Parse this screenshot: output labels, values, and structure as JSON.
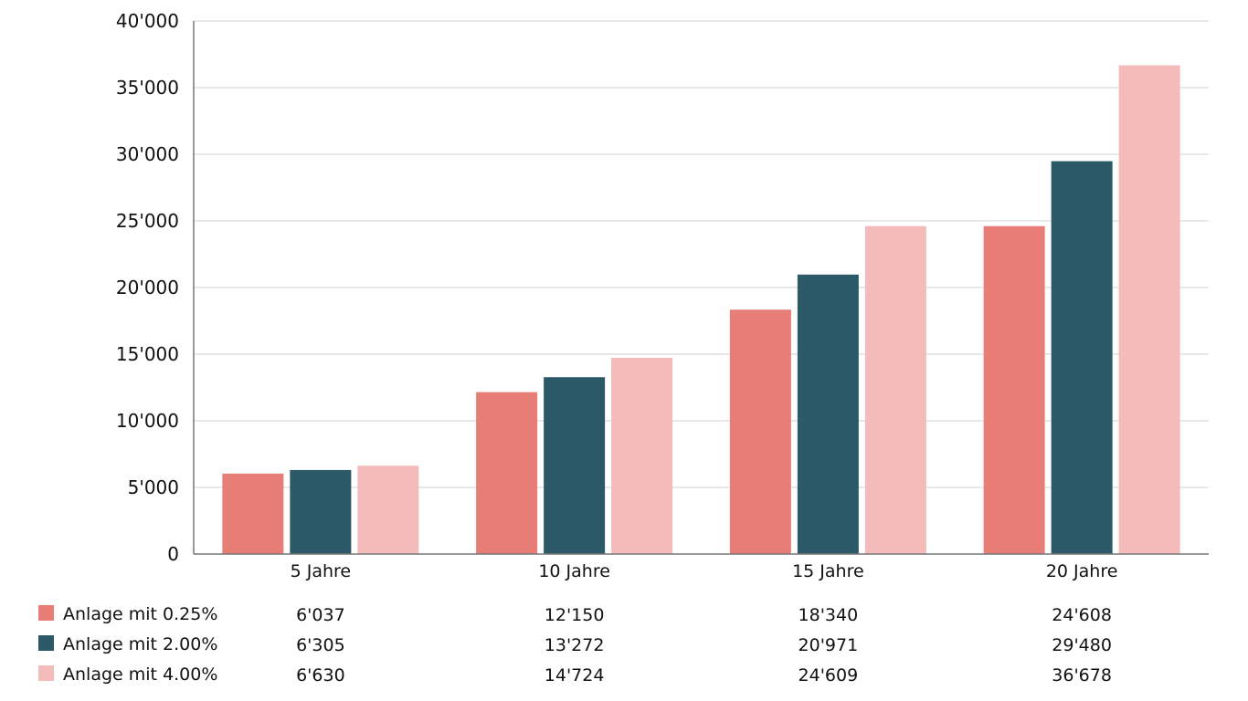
{
  "chart_data": {
    "type": "bar",
    "categories": [
      "5 Jahre",
      "10 Jahre",
      "15 Jahre",
      "20 Jahre"
    ],
    "series": [
      {
        "name": "Anlage mit 0.25%",
        "color": "#e87d78",
        "values": [
          6037,
          12150,
          18340,
          24608
        ],
        "labels": [
          "6'037",
          "12'150",
          "18'340",
          "24'608"
        ]
      },
      {
        "name": "Anlage mit 2.00%",
        "color": "#2b5968",
        "values": [
          6305,
          13272,
          20971,
          29480
        ],
        "labels": [
          "6'305",
          "13'272",
          "20'971",
          "29'480"
        ]
      },
      {
        "name": "Anlage mit 4.00%",
        "color": "#f3bcba",
        "values": [
          6630,
          14724,
          24609,
          36678
        ],
        "labels": [
          "6'630",
          "14'724",
          "24'609",
          "36'678"
        ]
      }
    ],
    "ylim": [
      0,
      40000
    ],
    "yticks": [
      0,
      5000,
      10000,
      15000,
      20000,
      25000,
      30000,
      35000,
      40000
    ],
    "ytick_labels": [
      "0",
      "5'000",
      "10'000",
      "15'000",
      "20'000",
      "25'000",
      "30'000",
      "35'000",
      "40'000"
    ],
    "grid": true,
    "legend": "bottom data table",
    "title": "",
    "xlabel": "",
    "ylabel": ""
  }
}
